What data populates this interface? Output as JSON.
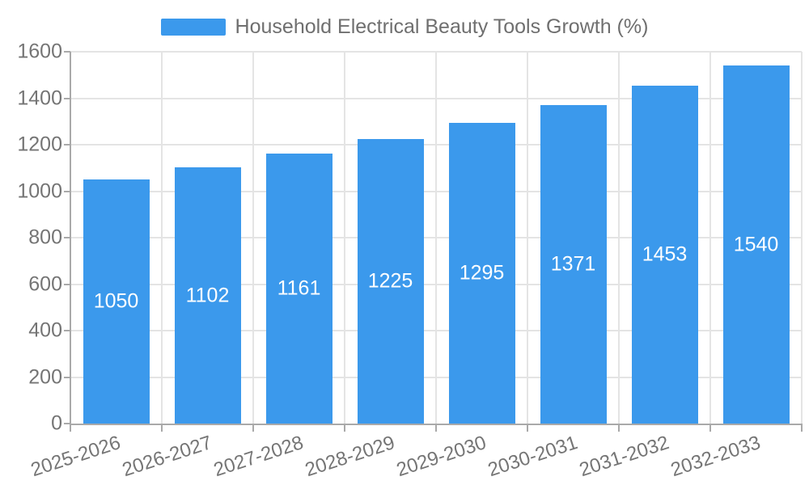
{
  "chart_data": {
    "type": "bar",
    "title": "Household Electrical Beauty Tools Growth (%)",
    "categories": [
      "2025-2026",
      "2026-2027",
      "2027-2028",
      "2028-2029",
      "2029-2030",
      "2030-2031",
      "2031-2032",
      "2032-2033"
    ],
    "values": [
      1050,
      1102,
      1161,
      1225,
      1295,
      1371,
      1453,
      1540
    ],
    "value_labels": [
      "1050",
      "1102",
      "1161",
      "1225",
      "1295",
      "1371",
      "1453",
      "1540"
    ],
    "yticks": [
      0,
      200,
      400,
      600,
      800,
      1000,
      1200,
      1400,
      1600
    ],
    "ylim": [
      0,
      1600
    ],
    "xlabel": "",
    "ylabel": "",
    "grid": true,
    "legend_position": "top",
    "colors": {
      "bar": "#3b99ec",
      "grid": "#e4e4e4",
      "axis": "#a9a9a9",
      "tick_text": "#757575",
      "value_text": "#ffffff",
      "background": "#ffffff"
    }
  }
}
